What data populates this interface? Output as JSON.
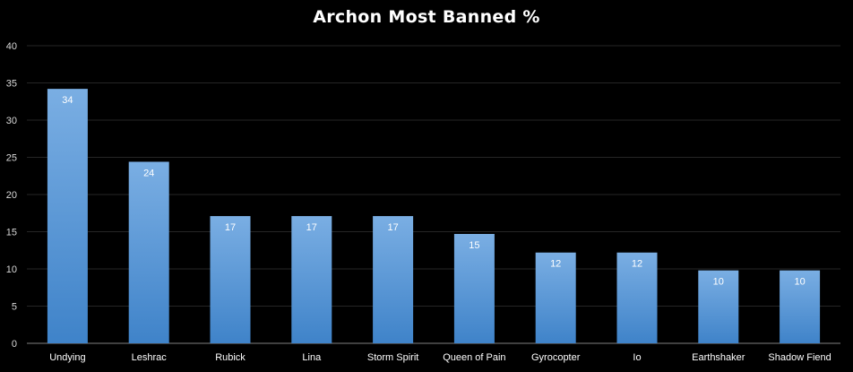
{
  "chart_data": {
    "type": "bar",
    "title": "Archon Most Banned %",
    "xlabel": "",
    "ylabel": "",
    "categories": [
      "Undying",
      "Leshrac",
      "Rubick",
      "Lina",
      "Storm Spirit",
      "Queen of Pain",
      "Gyrocopter",
      "Io",
      "Earthshaker",
      "Shadow Fiend"
    ],
    "values": [
      34.2,
      24.4,
      17.1,
      17.1,
      17.1,
      14.7,
      12.2,
      12.2,
      9.8,
      9.8
    ],
    "data_labels": [
      "34",
      "24",
      "17",
      "17",
      "17",
      "15",
      "12",
      "12",
      "10",
      "10"
    ],
    "ylim": [
      0,
      40
    ],
    "yticks": [
      "0",
      "5",
      "10",
      "15",
      "20",
      "25",
      "30",
      "35",
      "40"
    ],
    "grid": true,
    "legend": "none",
    "colors": {
      "background": "#000000",
      "bar_top": "#7aaee3",
      "bar_bottom": "#3f83c9",
      "grid": "#262626",
      "text": "#ffffff"
    }
  }
}
